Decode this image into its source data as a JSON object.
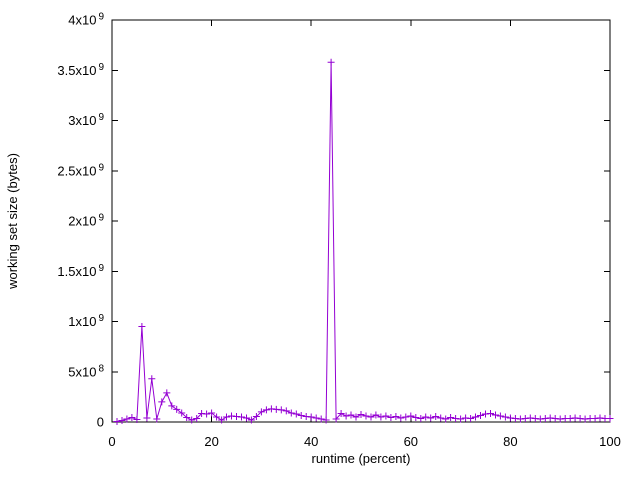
{
  "window": {
    "background_color": "#ffffff",
    "border_color": "#000000"
  },
  "chart_data": {
    "type": "line",
    "title": "",
    "xlabel": "runtime (percent)",
    "ylabel": "working set size (bytes)",
    "xlim": [
      0,
      100
    ],
    "ylim": [
      0,
      4000000000
    ],
    "grid": false,
    "legend": "none",
    "marker": "plus",
    "line_color": "#9400D3",
    "x_ticks": [
      0,
      20,
      40,
      60,
      80,
      100
    ],
    "x_tick_labels": [
      "0",
      "20",
      "40",
      "60",
      "80",
      "100"
    ],
    "y_ticks": [
      0,
      500000000.0,
      1000000000.0,
      1500000000.0,
      2000000000.0,
      2500000000.0,
      3000000000.0,
      3500000000.0,
      4000000000.0
    ],
    "y_tick_labels": [
      "0",
      "5x10^8",
      "1x10^9",
      "1.5x10^9",
      "2x10^9",
      "2.5x10^9",
      "3x10^9",
      "3.5x10^9",
      "4x10^9"
    ],
    "series": [
      {
        "x": [
          1,
          2,
          3,
          4,
          5,
          6,
          7,
          8,
          9,
          10,
          11,
          12,
          13,
          14,
          15,
          16,
          17,
          18,
          19,
          20,
          21,
          22,
          23,
          24,
          25,
          26,
          27,
          28,
          29,
          30,
          31,
          32,
          33,
          34,
          35,
          36,
          37,
          38,
          39,
          40,
          41,
          42,
          43,
          44,
          45,
          46,
          47,
          48,
          49,
          50,
          51,
          52,
          53,
          54,
          55,
          56,
          57,
          58,
          59,
          60,
          61,
          62,
          63,
          64,
          65,
          66,
          67,
          68,
          69,
          70,
          71,
          72,
          73,
          74,
          75,
          76,
          77,
          78,
          79,
          80,
          81,
          82,
          83,
          84,
          85,
          86,
          87,
          88,
          89,
          90,
          91,
          92,
          93,
          94,
          95,
          96,
          97,
          98,
          99,
          100
        ],
        "y": [
          5000000.0,
          15000000.0,
          30000000.0,
          45000000.0,
          25000000.0,
          950000000.0,
          40000000.0,
          430000000.0,
          30000000.0,
          200000000.0,
          290000000.0,
          160000000.0,
          125000000.0,
          90000000.0,
          45000000.0,
          20000000.0,
          35000000.0,
          85000000.0,
          80000000.0,
          90000000.0,
          50000000.0,
          20000000.0,
          50000000.0,
          60000000.0,
          55000000.0,
          50000000.0,
          40000000.0,
          20000000.0,
          55000000.0,
          100000000.0,
          120000000.0,
          130000000.0,
          125000000.0,
          120000000.0,
          110000000.0,
          90000000.0,
          80000000.0,
          65000000.0,
          55000000.0,
          50000000.0,
          40000000.0,
          30000000.0,
          20000000.0,
          3580000000.0,
          30000000.0,
          85000000.0,
          60000000.0,
          70000000.0,
          50000000.0,
          75000000.0,
          60000000.0,
          50000000.0,
          70000000.0,
          50000000.0,
          60000000.0,
          45000000.0,
          55000000.0,
          40000000.0,
          50000000.0,
          60000000.0,
          45000000.0,
          35000000.0,
          50000000.0,
          40000000.0,
          55000000.0,
          40000000.0,
          30000000.0,
          45000000.0,
          35000000.0,
          30000000.0,
          40000000.0,
          35000000.0,
          50000000.0,
          65000000.0,
          80000000.0,
          85000000.0,
          70000000.0,
          60000000.0,
          50000000.0,
          40000000.0,
          35000000.0,
          30000000.0,
          35000000.0,
          40000000.0,
          35000000.0,
          30000000.0,
          35000000.0,
          40000000.0,
          35000000.0,
          30000000.0,
          35000000.0,
          35000000.0,
          40000000.0,
          35000000.0,
          30000000.0,
          35000000.0,
          35000000.0,
          40000000.0,
          35000000.0,
          35000000.0
        ]
      }
    ]
  }
}
